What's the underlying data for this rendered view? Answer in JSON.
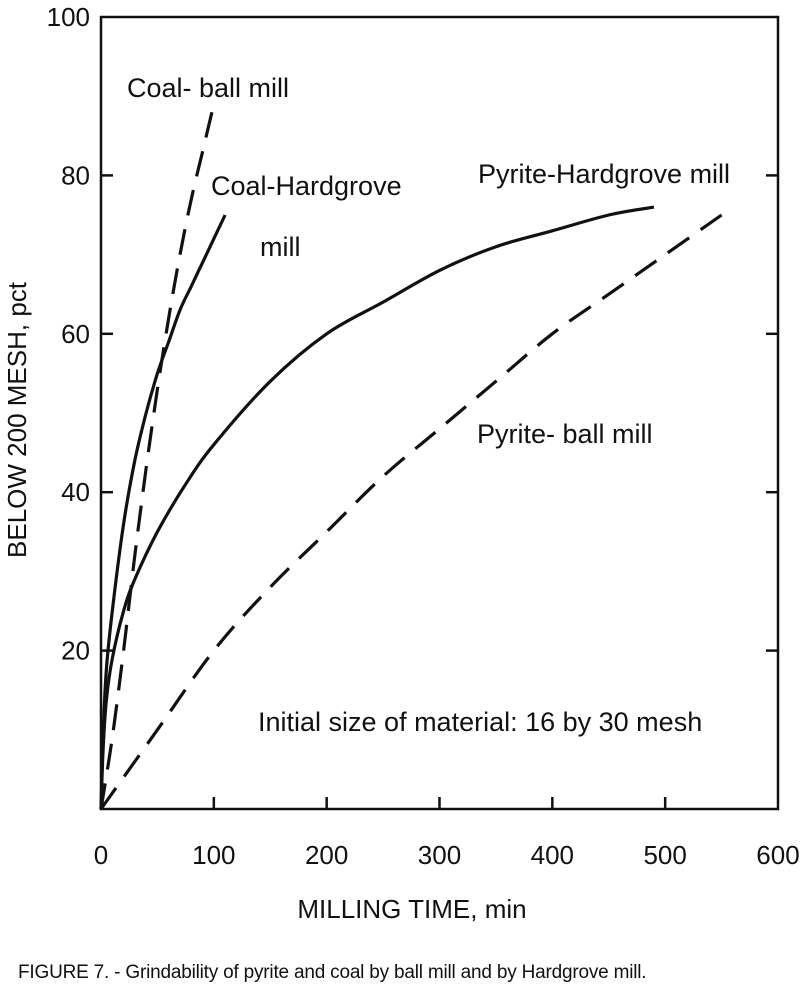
{
  "chart_data": {
    "type": "line",
    "xlabel": "MILLING TIME, min",
    "ylabel": "BELOW 200 MESH, pct",
    "xlim": [
      0,
      600
    ],
    "ylim": [
      0,
      100
    ],
    "x_ticks": [
      "0",
      "100",
      "200",
      "300",
      "400",
      "500",
      "600"
    ],
    "y_ticks": [
      "20",
      "40",
      "60",
      "80",
      "100"
    ],
    "grid": false,
    "series": [
      {
        "name": "Coal- ball mill",
        "style": "dashed",
        "x": [
          0,
          10,
          20,
          30,
          40,
          50,
          60,
          70,
          80,
          90,
          100
        ],
        "y": [
          0,
          9,
          20,
          32,
          43,
          53,
          62,
          70,
          77,
          83,
          89
        ]
      },
      {
        "name": "Coal-Hardgrove mill",
        "style": "solid",
        "x": [
          0,
          2,
          5,
          10,
          20,
          30,
          40,
          50,
          60,
          70,
          80,
          90,
          100,
          110
        ],
        "y": [
          0,
          10,
          18,
          25,
          36,
          44,
          50,
          55,
          59,
          63,
          66,
          69,
          72,
          75
        ]
      },
      {
        "name": "Pyrite-Hardgrove mill",
        "style": "solid",
        "x": [
          0,
          2,
          5,
          10,
          20,
          30,
          50,
          75,
          100,
          150,
          200,
          250,
          300,
          350,
          400,
          450,
          490
        ],
        "y": [
          0,
          8,
          14,
          19,
          25,
          29,
          35,
          41,
          46,
          54,
          60,
          64,
          68,
          71,
          73,
          75,
          76
        ]
      },
      {
        "name": "Pyrite- ball mill",
        "style": "dashed",
        "x": [
          0,
          50,
          100,
          150,
          200,
          250,
          300,
          350,
          400,
          450,
          500,
          550
        ],
        "y": [
          0,
          10,
          20,
          28,
          35,
          42,
          48,
          54,
          60,
          65,
          70,
          75
        ]
      }
    ],
    "annotations": [
      {
        "text": "Coal- ball mill"
      },
      {
        "text": "Coal-Hardgrove"
      },
      {
        "text": "mill"
      },
      {
        "text": "Pyrite-Hardgrove mill"
      },
      {
        "text": "Pyrite- ball mill"
      },
      {
        "text": "Initial size of material: 16 by 30 mesh"
      }
    ]
  },
  "caption": "FIGURE 7. - Grindability of pyrite and coal by ball mill and by Hardgrove mill."
}
